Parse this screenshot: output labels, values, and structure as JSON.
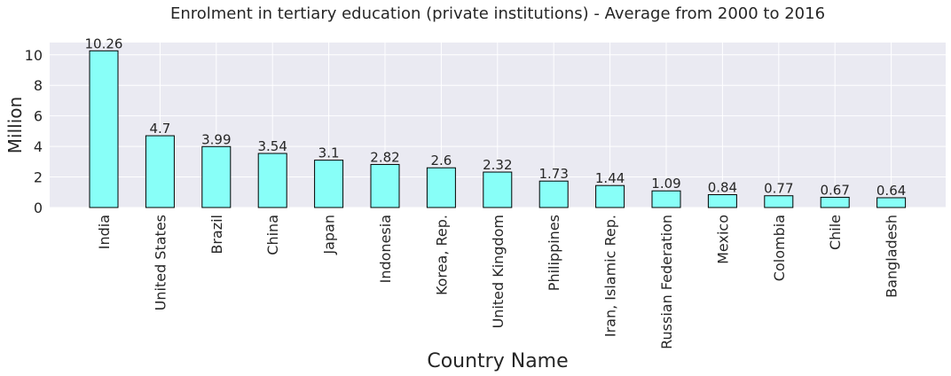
{
  "chart_data": {
    "type": "bar",
    "title": "Enrolment in tertiary education (private institutions) - Average from 2000 to 2016",
    "xlabel": "Country Name",
    "ylabel": "Million",
    "categories": [
      "India",
      "United States",
      "Brazil",
      "China",
      "Japan",
      "Indonesia",
      "Korea, Rep.",
      "United Kingdom",
      "Philippines",
      "Iran, Islamic Rep.",
      "Russian Federation",
      "Mexico",
      "Colombia",
      "Chile",
      "Bangladesh"
    ],
    "values": [
      10.26,
      4.7,
      3.99,
      3.54,
      3.1,
      2.82,
      2.6,
      2.32,
      1.73,
      1.44,
      1.09,
      0.84,
      0.77,
      0.67,
      0.64
    ],
    "data_labels": [
      "10.26",
      "4.7",
      "3.99",
      "3.54",
      "3.1",
      "2.82",
      "2.6",
      "2.32",
      "1.73",
      "1.44",
      "1.09",
      "0.84",
      "0.77",
      "0.67",
      "0.64"
    ],
    "ylim": [
      0,
      10.8
    ],
    "yticks": [
      0,
      2,
      4,
      6,
      8,
      10
    ],
    "grid": true,
    "legend": "none",
    "colors": {
      "bar_fill": "#88fff8",
      "bar_edge": "#000000",
      "plot_background": "#eaeaf2",
      "grid": "#ffffff",
      "text": "#262626"
    }
  }
}
